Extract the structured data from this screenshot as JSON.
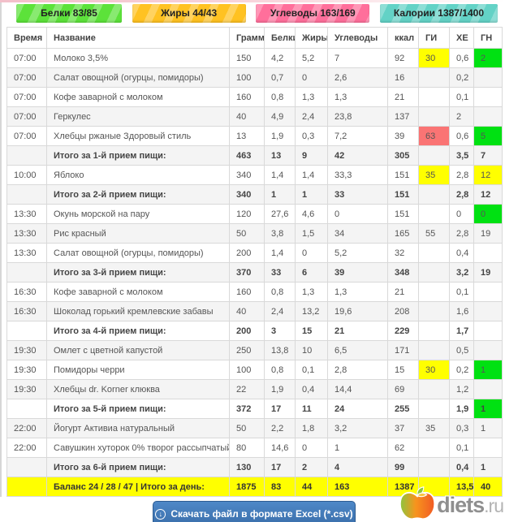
{
  "badges": [
    {
      "label": "Белки 83/85",
      "color": "#5ce23a"
    },
    {
      "label": "Жиры 44/43",
      "color": "#ffc222"
    },
    {
      "label": "Углеводы 163/169",
      "color": "#ff6f9b"
    },
    {
      "label": "Калории 1387/1400",
      "color": "#63d2c6"
    }
  ],
  "table": {
    "columns": [
      {
        "key": "time",
        "label": "Время"
      },
      {
        "key": "name",
        "label": "Название"
      },
      {
        "key": "gram",
        "label": "Грамм"
      },
      {
        "key": "protein",
        "label": "Белки"
      },
      {
        "key": "fat",
        "label": "Жиры"
      },
      {
        "key": "carbs",
        "label": "Углеводы"
      },
      {
        "key": "kcal",
        "label": "ккал"
      },
      {
        "key": "gi",
        "label": "ГИ"
      },
      {
        "key": "xe",
        "label": "ХЕ"
      },
      {
        "key": "gn",
        "label": "ГН"
      }
    ],
    "rows": [
      {
        "type": "item",
        "cells": {
          "time": "07:00",
          "name": "Молоко 3,5%",
          "gram": "150",
          "protein": "4,2",
          "fat": "5,2",
          "carbs": "7",
          "kcal": "92",
          "gi": "30",
          "xe": "0,6",
          "gn": "2"
        },
        "hl": {
          "gi": "yellow",
          "gn": "green"
        }
      },
      {
        "type": "item",
        "cells": {
          "time": "07:00",
          "name": "Салат овощной (огурцы, помидоры)",
          "gram": "100",
          "protein": "0,7",
          "fat": "0",
          "carbs": "2,6",
          "kcal": "16",
          "gi": "",
          "xe": "0,2",
          "gn": ""
        }
      },
      {
        "type": "item",
        "cells": {
          "time": "07:00",
          "name": "Кофе заварной с молоком",
          "gram": "160",
          "protein": "0,8",
          "fat": "1,3",
          "carbs": "1,3",
          "kcal": "21",
          "gi": "",
          "xe": "0,1",
          "gn": ""
        }
      },
      {
        "type": "item",
        "cells": {
          "time": "07:00",
          "name": "Геркулес",
          "gram": "40",
          "protein": "4,9",
          "fat": "2,4",
          "carbs": "23,8",
          "kcal": "137",
          "gi": "",
          "xe": "2",
          "gn": ""
        }
      },
      {
        "type": "item",
        "cells": {
          "time": "07:00",
          "name": "Хлебцы ржаные Здоровый стиль",
          "gram": "13",
          "protein": "1,9",
          "fat": "0,3",
          "carbs": "7,2",
          "kcal": "39",
          "gi": "63",
          "xe": "0,6",
          "gn": "5"
        },
        "hl": {
          "gi": "red",
          "gn": "green"
        }
      },
      {
        "type": "subtotal",
        "cells": {
          "time": "",
          "name": "Итого за 1-й прием пищи:",
          "gram": "463",
          "protein": "13",
          "fat": "9",
          "carbs": "42",
          "kcal": "305",
          "gi": "",
          "xe": "3,5",
          "gn": "7"
        },
        "hl": {
          "gn": "green"
        }
      },
      {
        "type": "item",
        "cells": {
          "time": "10:00",
          "name": "Яблоко",
          "gram": "340",
          "protein": "1,4",
          "fat": "1,4",
          "carbs": "33,3",
          "kcal": "151",
          "gi": "35",
          "xe": "2,8",
          "gn": "12"
        },
        "hl": {
          "gi": "yellow",
          "gn": "yellow"
        }
      },
      {
        "type": "subtotal",
        "cells": {
          "time": "",
          "name": "Итого за 2-й прием пищи:",
          "gram": "340",
          "protein": "1",
          "fat": "1",
          "carbs": "33",
          "kcal": "151",
          "gi": "",
          "xe": "2,8",
          "gn": "12"
        },
        "hl": {
          "gn": "yellow"
        }
      },
      {
        "type": "item",
        "cells": {
          "time": "13:30",
          "name": "Окунь морской на пару",
          "gram": "120",
          "protein": "27,6",
          "fat": "4,6",
          "carbs": "0",
          "kcal": "151",
          "gi": "",
          "xe": "0",
          "gn": "0"
        },
        "hl": {
          "gn": "green"
        }
      },
      {
        "type": "item",
        "cells": {
          "time": "13:30",
          "name": "Рис красный",
          "gram": "50",
          "protein": "3,8",
          "fat": "1,5",
          "carbs": "34",
          "kcal": "165",
          "gi": "55",
          "xe": "2,8",
          "gn": "19"
        },
        "hl": {
          "gi": "yellow",
          "gn": "yellow"
        }
      },
      {
        "type": "item",
        "cells": {
          "time": "13:30",
          "name": "Салат овощной (огурцы, помидоры)",
          "gram": "200",
          "protein": "1,4",
          "fat": "0",
          "carbs": "5,2",
          "kcal": "32",
          "gi": "",
          "xe": "0,4",
          "gn": ""
        }
      },
      {
        "type": "subtotal",
        "cells": {
          "time": "",
          "name": "Итого за 3-й прием пищи:",
          "gram": "370",
          "protein": "33",
          "fat": "6",
          "carbs": "39",
          "kcal": "348",
          "gi": "",
          "xe": "3,2",
          "gn": "19"
        },
        "hl": {
          "gn": "yellow"
        }
      },
      {
        "type": "item",
        "cells": {
          "time": "16:30",
          "name": "Кофе заварной с молоком",
          "gram": "160",
          "protein": "0,8",
          "fat": "1,3",
          "carbs": "1,3",
          "kcal": "21",
          "gi": "",
          "xe": "0,1",
          "gn": ""
        }
      },
      {
        "type": "item",
        "cells": {
          "time": "16:30",
          "name": "Шоколад горький кремлевские забавы",
          "gram": "40",
          "protein": "2,4",
          "fat": "13,2",
          "carbs": "19,6",
          "kcal": "208",
          "gi": "",
          "xe": "1,6",
          "gn": ""
        }
      },
      {
        "type": "subtotal",
        "cells": {
          "time": "",
          "name": "Итого за 4-й прием пищи:",
          "gram": "200",
          "protein": "3",
          "fat": "15",
          "carbs": "21",
          "kcal": "229",
          "gi": "",
          "xe": "1,7",
          "gn": ""
        }
      },
      {
        "type": "item",
        "cells": {
          "time": "19:30",
          "name": "Омлет с цветной капустой",
          "gram": "250",
          "protein": "13,8",
          "fat": "10",
          "carbs": "6,5",
          "kcal": "171",
          "gi": "",
          "xe": "0,5",
          "gn": ""
        }
      },
      {
        "type": "item",
        "cells": {
          "time": "19:30",
          "name": "Помидоры черри",
          "gram": "100",
          "protein": "0,8",
          "fat": "0,1",
          "carbs": "2,8",
          "kcal": "15",
          "gi": "30",
          "xe": "0,2",
          "gn": "1"
        },
        "hl": {
          "gi": "yellow",
          "gn": "green"
        }
      },
      {
        "type": "item",
        "cells": {
          "time": "19:30",
          "name": "Хлебцы dr. Korner клюква",
          "gram": "22",
          "protein": "1,9",
          "fat": "0,4",
          "carbs": "14,4",
          "kcal": "69",
          "gi": "",
          "xe": "1,2",
          "gn": ""
        }
      },
      {
        "type": "subtotal",
        "cells": {
          "time": "",
          "name": "Итого за 5-й прием пищи:",
          "gram": "372",
          "protein": "17",
          "fat": "11",
          "carbs": "24",
          "kcal": "255",
          "gi": "",
          "xe": "1,9",
          "gn": "1"
        },
        "hl": {
          "gn": "green"
        }
      },
      {
        "type": "item",
        "cells": {
          "time": "22:00",
          "name": "Йогурт Активиа натуральный",
          "gram": "50",
          "protein": "2,2",
          "fat": "1,8",
          "carbs": "3,2",
          "kcal": "37",
          "gi": "35",
          "xe": "0,3",
          "gn": "1"
        },
        "hl": {
          "gi": "yellow",
          "gn": "green"
        }
      },
      {
        "type": "item",
        "cells": {
          "time": "22:00",
          "name": "Савушкин хуторок 0% творог рассыпчатый",
          "gram": "80",
          "protein": "14,6",
          "fat": "0",
          "carbs": "1",
          "kcal": "62",
          "gi": "",
          "xe": "0,1",
          "gn": ""
        }
      },
      {
        "type": "subtotal",
        "cells": {
          "time": "",
          "name": "Итого за 6-й прием пищи:",
          "gram": "130",
          "protein": "17",
          "fat": "2",
          "carbs": "4",
          "kcal": "99",
          "gi": "",
          "xe": "0,4",
          "gn": "1"
        },
        "hl": {
          "gn": "green"
        }
      },
      {
        "type": "total",
        "cells": {
          "time": "",
          "name": "Баланс 24 / 28 / 47 | Итого за день:",
          "gram": "1875",
          "protein": "83",
          "fat": "44",
          "carbs": "163",
          "kcal": "1387",
          "gi": "",
          "xe": "13,5",
          "gn": "40"
        }
      }
    ]
  },
  "footer": {
    "download_button_label": "Скачать файл в формате Excel (*.csv)",
    "download_icon": "circled-down-arrow",
    "logo": {
      "name": "diets",
      "tld": ".ru",
      "icon": "apple-icon"
    }
  },
  "colors": {
    "highlight_yellow": "#ffff00",
    "highlight_red": "#fa7474",
    "highlight_green": "#00e112",
    "total_row": "#ffff00",
    "button_blue": "#3f74ad",
    "badge_protein": "#5ce23a",
    "badge_fat": "#ffc222",
    "badge_carbs": "#ff6f9b",
    "badge_kcal": "#63d2c6"
  }
}
